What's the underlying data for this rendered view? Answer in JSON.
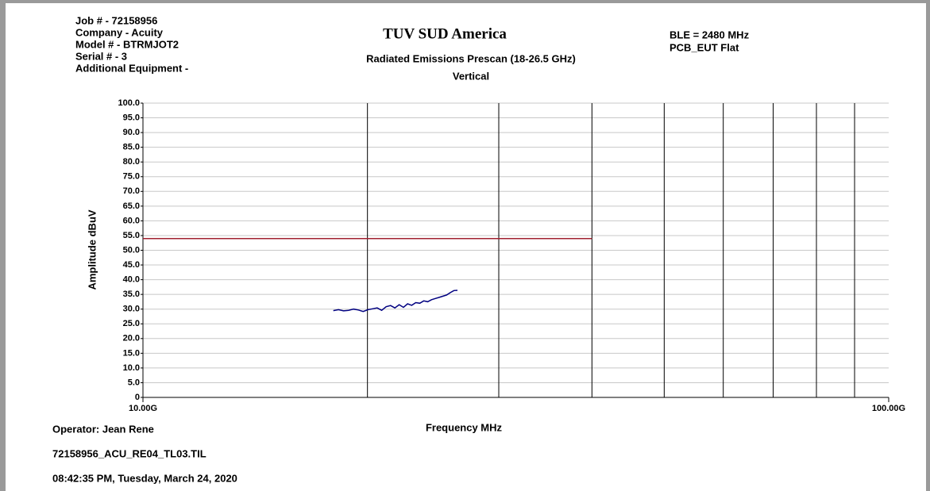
{
  "chart_data": {
    "type": "line",
    "title": "TUV SUD America",
    "subtitle": [
      "Radiated Emissions Prescan (18-26.5 GHz)",
      "Vertical"
    ],
    "info_left": [
      "Job # - 72158956",
      "Company - Acuity",
      "Model # - BTRMJOT2",
      "Serial # - 3",
      "Additional Equipment -"
    ],
    "info_right": [
      "BLE = 2480 MHz",
      "PCB_EUT Flat"
    ],
    "footer": [
      "Operator: Jean Rene",
      "72158956_ACU_RE04_TL03.TIL",
      "08:42:35 PM, Tuesday, March 24, 2020"
    ],
    "xlabel": "Frequency MHz",
    "ylabel": "Amplitude dBuV",
    "xscale": "log",
    "xlim": [
      10000,
      100000
    ],
    "xticks": [
      {
        "value": 10000,
        "label": "10.00G"
      },
      {
        "value": 100000,
        "label": "100.00G"
      }
    ],
    "xgrid": [
      20000,
      30000,
      40000,
      50000,
      60000,
      70000,
      80000,
      90000
    ],
    "ylim": [
      0,
      100
    ],
    "yticks": [
      0,
      {
        "value": 5,
        "label": "5.0"
      },
      {
        "value": 10,
        "label": "10.0"
      },
      {
        "value": 15,
        "label": "15.0"
      },
      {
        "value": 20,
        "label": "20.0"
      },
      {
        "value": 25,
        "label": "25.0"
      },
      {
        "value": 30,
        "label": "30.0"
      },
      {
        "value": 35,
        "label": "35.0"
      },
      {
        "value": 40,
        "label": "40.0"
      },
      {
        "value": 45,
        "label": "45.0"
      },
      {
        "value": 50,
        "label": "50.0"
      },
      {
        "value": 55,
        "label": "55.0"
      },
      {
        "value": 60,
        "label": "60.0"
      },
      {
        "value": 65,
        "label": "65.0"
      },
      {
        "value": 70,
        "label": "70.0"
      },
      {
        "value": 75,
        "label": "75.0"
      },
      {
        "value": 80,
        "label": "80.0"
      },
      {
        "value": 85,
        "label": "85.0"
      },
      {
        "value": 90,
        "label": "90.0"
      },
      {
        "value": 95,
        "label": "95.0"
      },
      {
        "value": 100,
        "label": "100.0"
      }
    ],
    "grid": true,
    "series": [
      {
        "color": "#000080",
        "x": [
          18000,
          18290,
          18580,
          18870,
          19160,
          19450,
          19740,
          20030,
          20320,
          20610,
          20900,
          21190,
          21480,
          21770,
          22060,
          22350,
          22640,
          22930,
          23220,
          23510,
          23800,
          24090,
          24380,
          24670,
          24960,
          25250,
          25540,
          25830,
          26120,
          26410
        ],
        "values": [
          29.5,
          29.8,
          29.4,
          29.6,
          30.0,
          29.7,
          29.2,
          29.8,
          30.1,
          30.4,
          29.6,
          30.8,
          31.2,
          30.4,
          31.5,
          30.6,
          31.8,
          31.3,
          32.2,
          32.0,
          32.8,
          32.5,
          33.2,
          33.6,
          34.0,
          34.4,
          34.8,
          35.6,
          36.3,
          36.4
        ]
      },
      {
        "color": "#a02030",
        "x": [
          10000,
          40000
        ],
        "values": [
          54,
          54
        ]
      }
    ]
  }
}
